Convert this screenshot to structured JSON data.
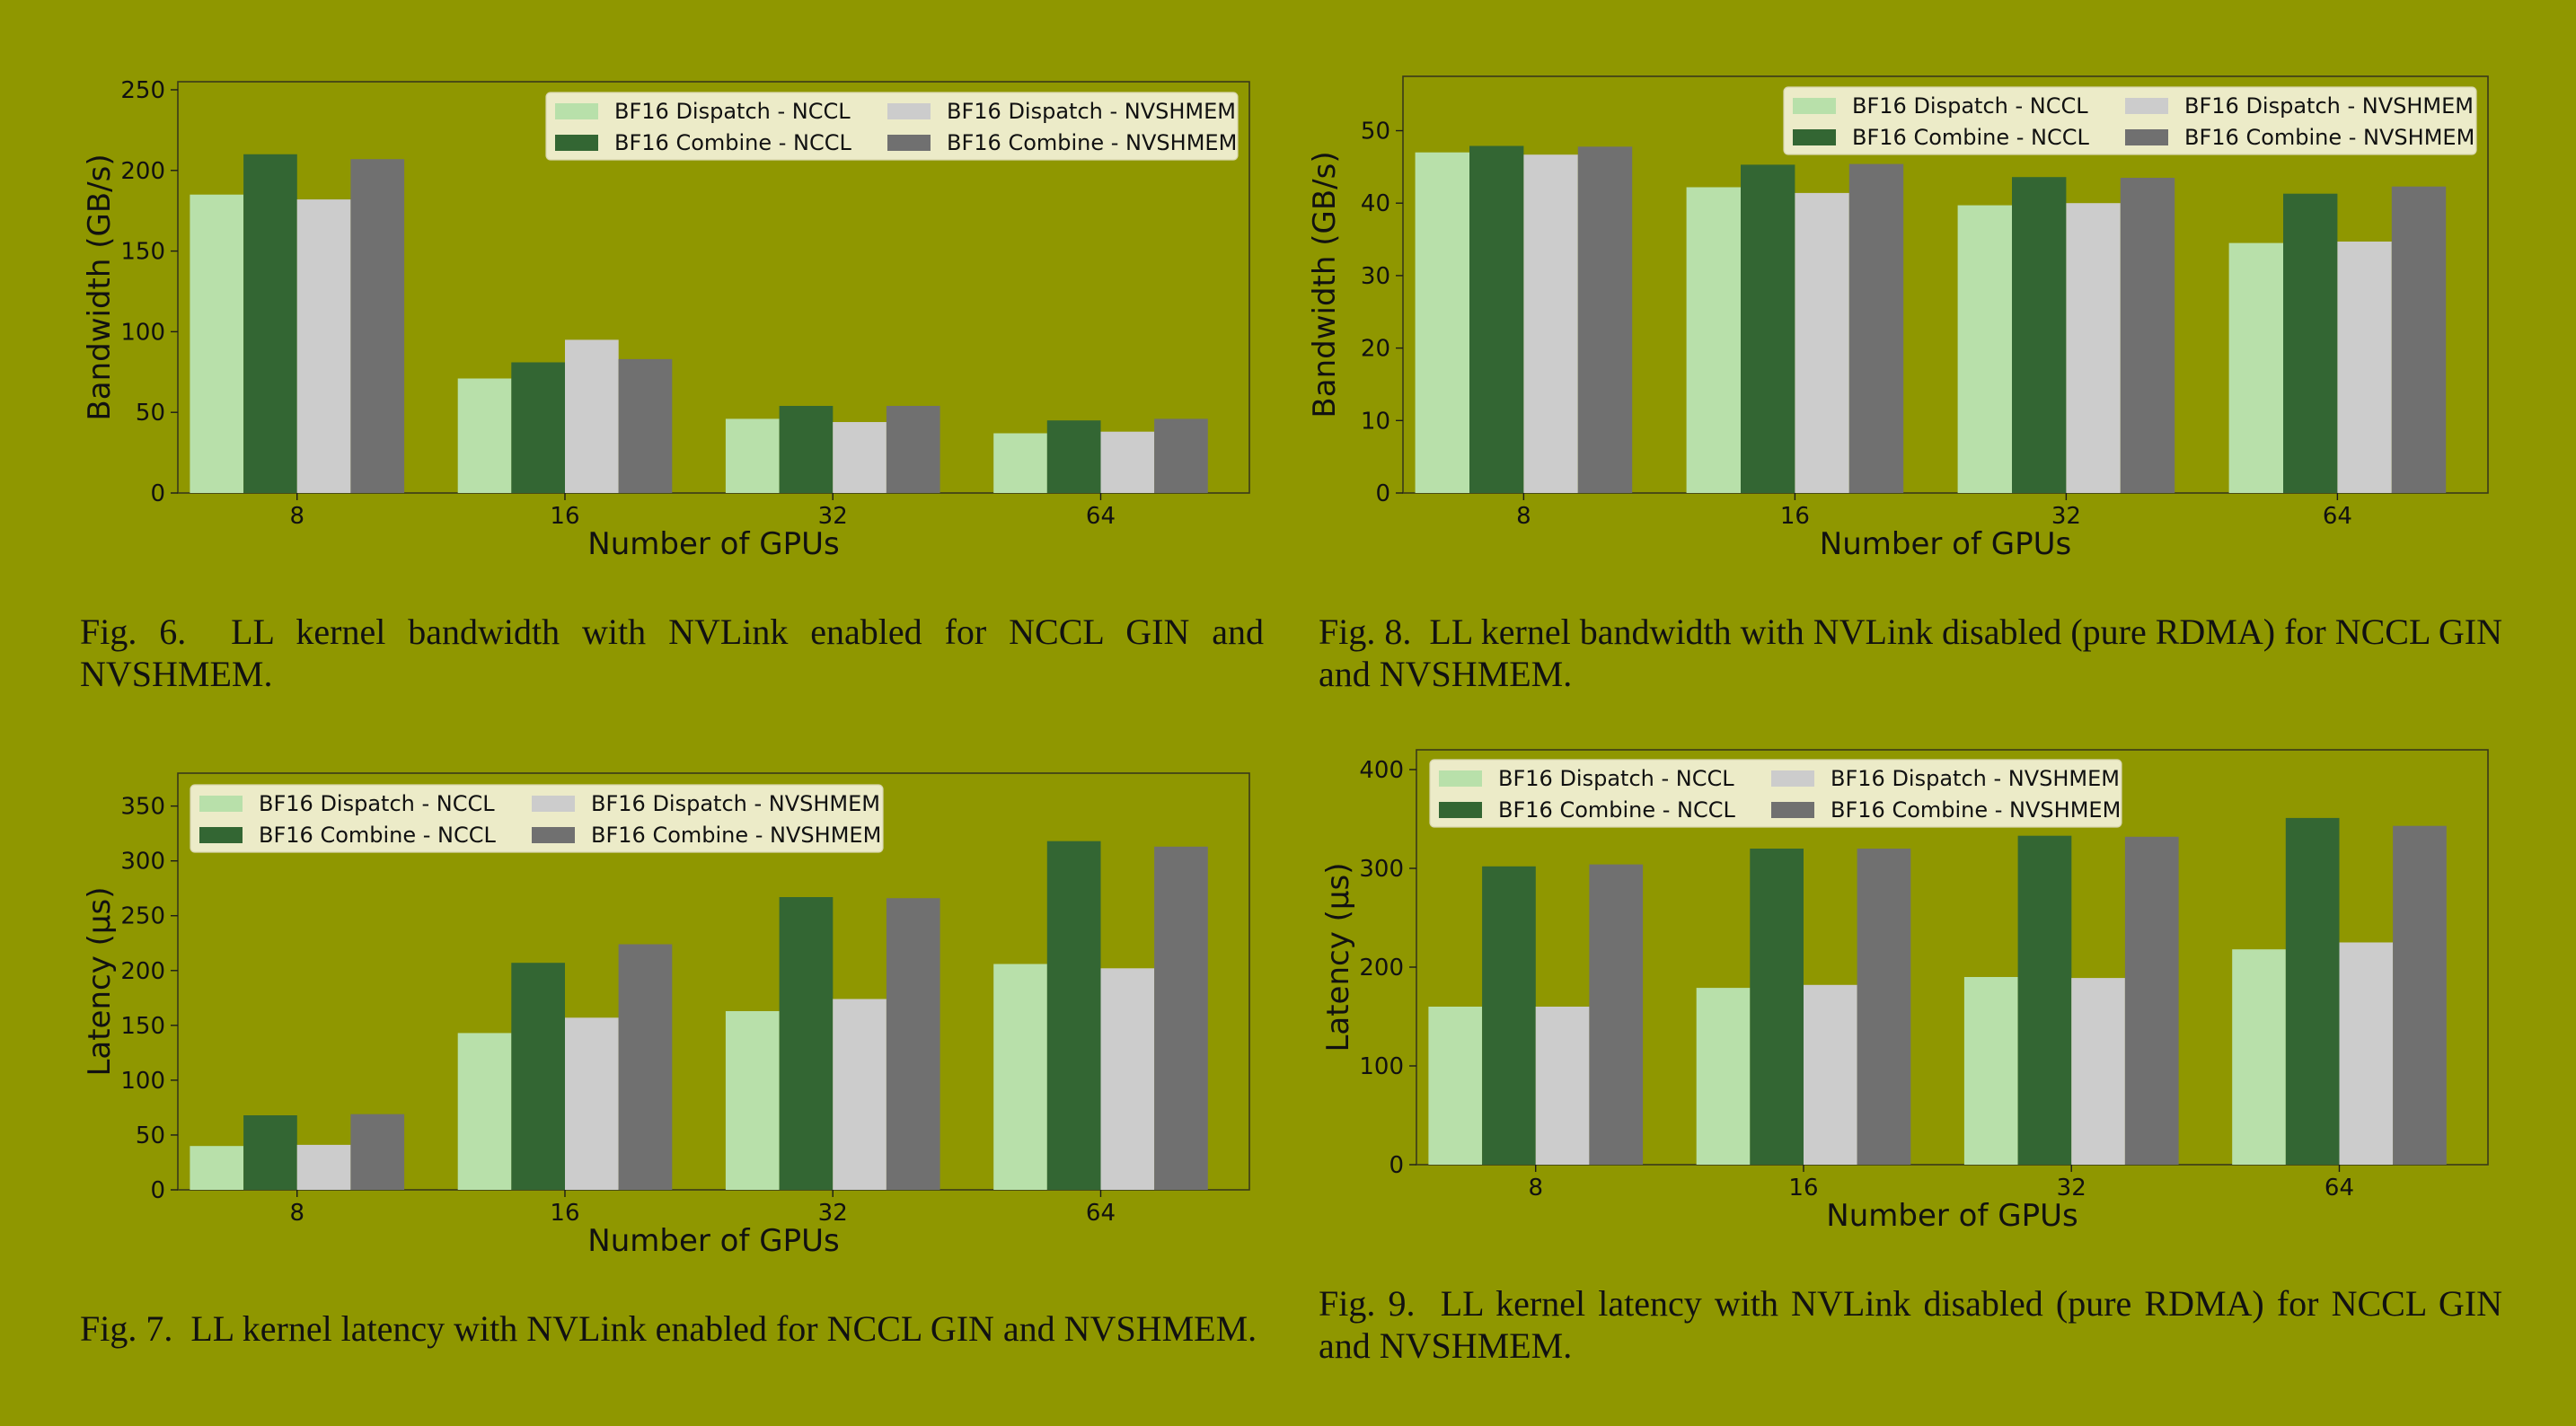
{
  "colors": {
    "background": "#8f9700",
    "dispatch_nccl": "#b8e0aa",
    "combine_nccl": "#336633",
    "dispatch_nvshmem": "#cccccc",
    "combine_nvshmem": "#707070"
  },
  "captions": {
    "fig6": {
      "num": "Fig. 6.",
      "text": "LL kernel bandwidth with NVLink enabled for NCCL GIN and NVSHMEM."
    },
    "fig7": {
      "num": "Fig. 7.",
      "text": "LL kernel latency with NVLink enabled for NCCL GIN and NVSHMEM."
    },
    "fig8": {
      "num": "Fig. 8.",
      "text": "LL kernel bandwidth with NVLink disabled (pure RDMA) for NCCL GIN and NVSHMEM."
    },
    "fig9": {
      "num": "Fig. 9.",
      "text": "LL kernel latency with NVLink disabled (pure RDMA) for NCCL GIN and NVSHMEM."
    }
  },
  "chart_data": [
    {
      "id": "fig6",
      "type": "bar",
      "xlabel": "Number of GPUs",
      "ylabel": "Bandwidth (GB/s)",
      "categories": [
        "8",
        "16",
        "32",
        "64"
      ],
      "ylim": [
        0,
        255
      ],
      "yticks": [
        0,
        50,
        100,
        150,
        200,
        250
      ],
      "legend_position": "top-right",
      "series": [
        {
          "name": "BF16 Dispatch - NCCL",
          "color_key": "dispatch_nccl",
          "values": [
            185,
            71,
            46,
            37
          ]
        },
        {
          "name": "BF16 Combine - NCCL",
          "color_key": "combine_nccl",
          "values": [
            210,
            81,
            54,
            45
          ]
        },
        {
          "name": "BF16 Dispatch - NVSHMEM",
          "color_key": "dispatch_nvshmem",
          "values": [
            182,
            95,
            44,
            38
          ]
        },
        {
          "name": "BF16 Combine - NVSHMEM",
          "color_key": "combine_nvshmem",
          "values": [
            207,
            83,
            54,
            46
          ]
        }
      ]
    },
    {
      "id": "fig8",
      "type": "bar",
      "xlabel": "Number of GPUs",
      "ylabel": "Bandwidth (GB/s)",
      "categories": [
        "8",
        "16",
        "32",
        "64"
      ],
      "ylim": [
        0,
        57.5
      ],
      "yticks": [
        0,
        10,
        20,
        30,
        40,
        50
      ],
      "legend_position": "top-right",
      "series": [
        {
          "name": "BF16 Dispatch - NCCL",
          "color_key": "dispatch_nccl",
          "values": [
            47.0,
            42.2,
            39.7,
            34.5
          ]
        },
        {
          "name": "BF16 Combine - NCCL",
          "color_key": "combine_nccl",
          "values": [
            47.9,
            45.3,
            43.6,
            41.3
          ]
        },
        {
          "name": "BF16 Dispatch - NVSHMEM",
          "color_key": "dispatch_nvshmem",
          "values": [
            46.7,
            41.4,
            40.0,
            34.7
          ]
        },
        {
          "name": "BF16 Combine - NVSHMEM",
          "color_key": "combine_nvshmem",
          "values": [
            47.8,
            45.4,
            43.5,
            42.3
          ]
        }
      ]
    },
    {
      "id": "fig7",
      "type": "bar",
      "xlabel": "Number of GPUs",
      "ylabel": "Latency (µs)",
      "categories": [
        "8",
        "16",
        "32",
        "64"
      ],
      "ylim": [
        0,
        380
      ],
      "yticks": [
        0,
        50,
        100,
        150,
        200,
        250,
        300,
        350
      ],
      "legend_position": "top-left",
      "series": [
        {
          "name": "BF16 Dispatch - NCCL",
          "color_key": "dispatch_nccl",
          "values": [
            40,
            143,
            163,
            206
          ]
        },
        {
          "name": "BF16 Combine - NCCL",
          "color_key": "combine_nccl",
          "values": [
            68,
            207,
            267,
            318
          ]
        },
        {
          "name": "BF16 Dispatch - NVSHMEM",
          "color_key": "dispatch_nvshmem",
          "values": [
            41,
            157,
            174,
            202
          ]
        },
        {
          "name": "BF16 Combine - NVSHMEM",
          "color_key": "combine_nvshmem",
          "values": [
            69,
            224,
            266,
            313
          ]
        }
      ]
    },
    {
      "id": "fig9",
      "type": "bar",
      "xlabel": "Number of GPUs",
      "ylabel": "Latency (µs)",
      "categories": [
        "8",
        "16",
        "32",
        "64"
      ],
      "ylim": [
        0,
        420
      ],
      "yticks": [
        0,
        100,
        200,
        300,
        400
      ],
      "legend_position": "top-left",
      "series": [
        {
          "name": "BF16 Dispatch - NCCL",
          "color_key": "dispatch_nccl",
          "values": [
            160,
            179,
            190,
            218
          ]
        },
        {
          "name": "BF16 Combine - NCCL",
          "color_key": "combine_nccl",
          "values": [
            302,
            320,
            333,
            351
          ]
        },
        {
          "name": "BF16 Dispatch - NVSHMEM",
          "color_key": "dispatch_nvshmem",
          "values": [
            160,
            182,
            189,
            225
          ]
        },
        {
          "name": "BF16 Combine - NVSHMEM",
          "color_key": "combine_nvshmem",
          "values": [
            304,
            320,
            332,
            343
          ]
        }
      ]
    }
  ]
}
